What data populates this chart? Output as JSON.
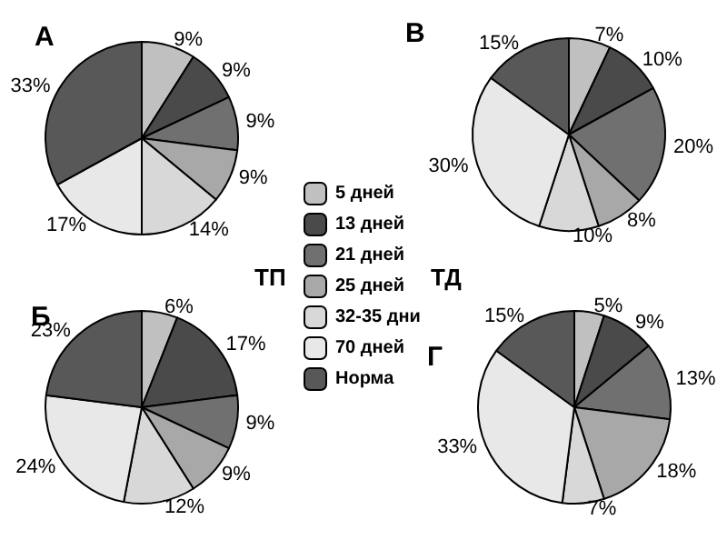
{
  "chart_data": [
    {
      "type": "pie",
      "title": "А",
      "categories": [
        "5 дней",
        "13 дней",
        "21 дней",
        "25 дней",
        "32-35 дни",
        "70 дней",
        "Норма"
      ],
      "values": [
        9,
        9,
        9,
        9,
        14,
        17,
        33
      ],
      "value_labels": [
        "9%",
        "9%",
        "9%",
        "9%",
        "14%",
        "17%",
        "33%"
      ],
      "colors": [
        "#c0c0c0",
        "#4a4a4a",
        "#707070",
        "#a8a8a8",
        "#d8d8d8",
        "#e8e8e8",
        "#585858"
      ],
      "legend": "right"
    },
    {
      "type": "pie",
      "title": "В",
      "categories": [
        null,
        null,
        null,
        null,
        null,
        null,
        null
      ],
      "values": [
        7,
        10,
        20,
        8,
        10,
        30,
        15
      ],
      "value_labels": [
        "7%",
        "10%",
        "20%",
        "8%",
        "10%",
        "30%",
        "15%"
      ],
      "colors": [
        "#c0c0c0",
        "#4a4a4a",
        "#707070",
        "#a8a8a8",
        "#d8d8d8",
        "#e8e8e8",
        "#585858"
      ]
    },
    {
      "type": "pie",
      "title": "Б",
      "annotations": [
        "ТП"
      ],
      "categories": [
        null,
        null,
        null,
        null,
        null,
        null,
        null
      ],
      "values": [
        6,
        17,
        9,
        9,
        12,
        24,
        23
      ],
      "value_labels": [
        "6%",
        "17%",
        "9%",
        "9%",
        "12%",
        "24%",
        "23%"
      ],
      "colors": [
        "#c0c0c0",
        "#4a4a4a",
        "#707070",
        "#a8a8a8",
        "#d8d8d8",
        "#e8e8e8",
        "#585858"
      ]
    },
    {
      "type": "pie",
      "title": "Г",
      "annotations": [
        "ТД"
      ],
      "categories": [
        null,
        null,
        null,
        null,
        null,
        null,
        null
      ],
      "values": [
        5,
        9,
        13,
        18,
        7,
        33,
        15
      ],
      "value_labels": [
        "5%",
        "9%",
        "13%",
        "18%",
        "7%",
        "33%",
        "15%"
      ],
      "colors": [
        "#c0c0c0",
        "#4a4a4a",
        "#707070",
        "#a8a8a8",
        "#d8d8d8",
        "#e8e8e8",
        "#585858"
      ]
    }
  ]
}
